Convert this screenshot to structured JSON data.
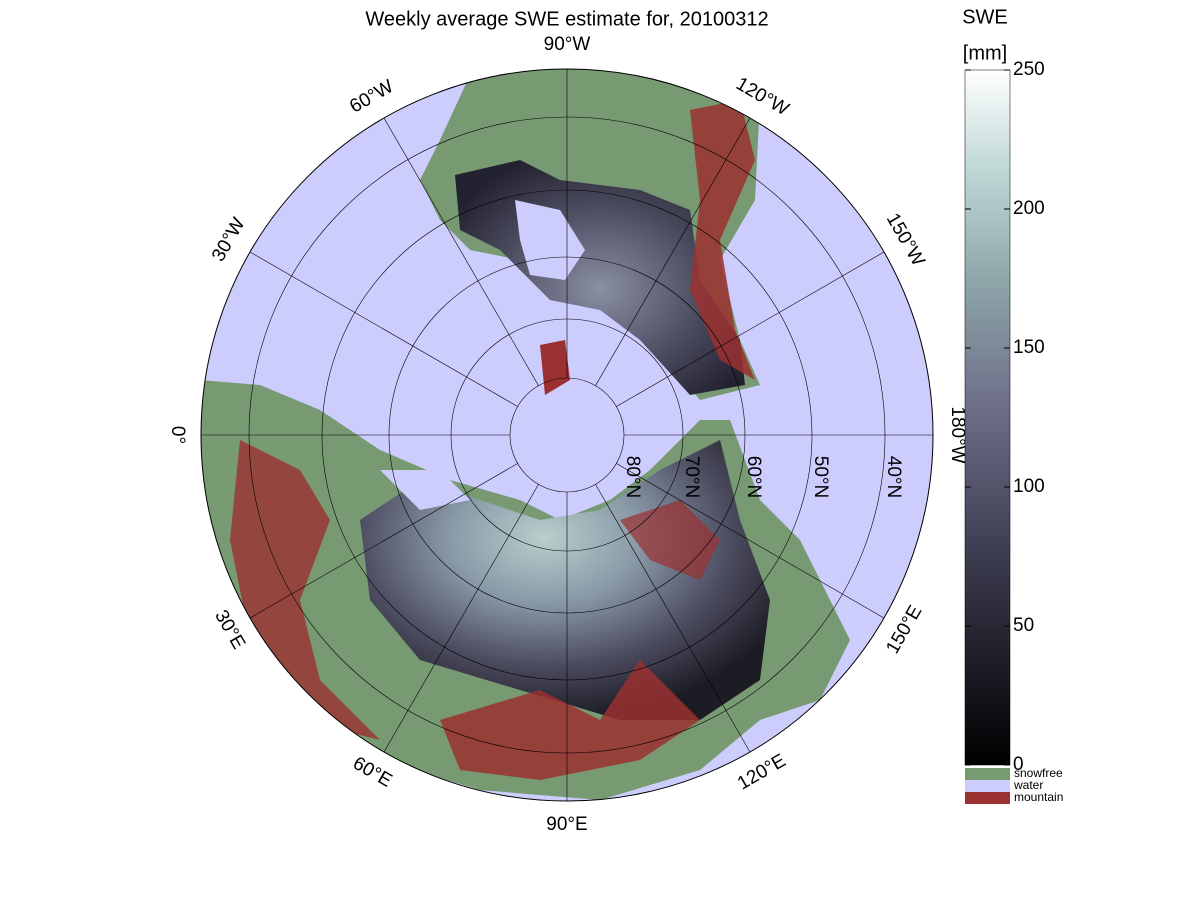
{
  "title": "Weekly average SWE estimate for, 20100312",
  "meridian_labels": [
    "90°W",
    "120°W",
    "150°W",
    "180°W",
    "150°E",
    "120°E",
    "90°E",
    "60°E",
    "30°E",
    "0°",
    "30°W",
    "60°W"
  ],
  "parallel_labels": [
    "80°N",
    "70°N",
    "60°N",
    "50°N",
    "40°N"
  ],
  "colorbar": {
    "title": "SWE",
    "unit": "[mm]",
    "lim": [
      0,
      250
    ],
    "ticks": [
      0,
      50,
      100,
      150,
      200,
      250
    ]
  },
  "legend": [
    {
      "name": "snowfree",
      "color": "#779a73"
    },
    {
      "name": "water",
      "color": "#ccccfd"
    },
    {
      "name": "mountain",
      "color": "#9b3030"
    }
  ]
}
